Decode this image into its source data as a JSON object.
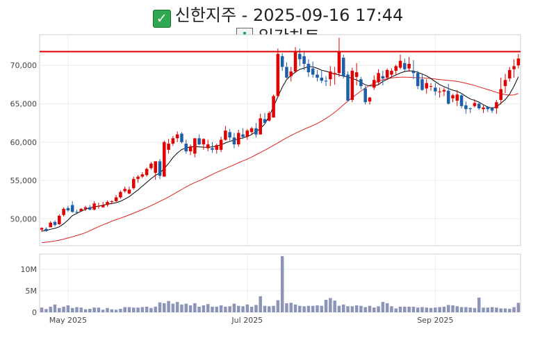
{
  "header": {
    "status_icon": "check-mark-icon",
    "title": "신한지주 - 2025-09-16 17:44",
    "subtitle_icon": "bar-chart-icon",
    "subtitle": "일간차트"
  },
  "colors": {
    "up": "#e00000",
    "down": "#1f5fa8",
    "ma_short": "#000000",
    "ma_long": "#e02020",
    "resistance": "#dd0000",
    "volume": "#8c94b8"
  },
  "chart_data": [
    {
      "type": "candlestick",
      "x_tick_labels": [
        "May 2025",
        "Jul 2025",
        "Sep 2025"
      ],
      "y_tick_labels": [
        "50,000",
        "55,000",
        "60,000",
        "65,000",
        "70,000"
      ],
      "ylim": [
        46500,
        74000
      ],
      "horizontal_line": 71800,
      "grid": true,
      "series_ohlc": [
        [
          48600,
          48900,
          48300,
          48800
        ],
        [
          48700,
          48900,
          48300,
          48400
        ],
        [
          48900,
          49700,
          48900,
          49500
        ],
        [
          49600,
          49800,
          49000,
          49200
        ],
        [
          49300,
          50600,
          49200,
          50400
        ],
        [
          50500,
          51500,
          50300,
          51300
        ],
        [
          51400,
          51700,
          50900,
          51100
        ],
        [
          51800,
          52300,
          50800,
          50900
        ],
        [
          50900,
          51200,
          50600,
          50800
        ],
        [
          51000,
          51400,
          50900,
          51300
        ],
        [
          51300,
          51700,
          51000,
          51500
        ],
        [
          51500,
          51800,
          51100,
          51200
        ],
        [
          51200,
          52300,
          51100,
          52000
        ],
        [
          51600,
          52100,
          51300,
          51700
        ],
        [
          51500,
          52200,
          51500,
          51800
        ],
        [
          51800,
          52400,
          51600,
          52200
        ],
        [
          52200,
          52400,
          51900,
          52300
        ],
        [
          52300,
          53100,
          52200,
          52800
        ],
        [
          52800,
          53700,
          52600,
          53500
        ],
        [
          53600,
          54200,
          53400,
          53900
        ],
        [
          53300,
          54200,
          53200,
          53800
        ],
        [
          54000,
          55500,
          53800,
          55200
        ],
        [
          55200,
          55700,
          54700,
          55500
        ],
        [
          55500,
          56100,
          55300,
          55800
        ],
        [
          55700,
          56700,
          55500,
          56500
        ],
        [
          56600,
          57400,
          56400,
          57200
        ],
        [
          56000,
          57300,
          55100,
          57500
        ],
        [
          57500,
          57800,
          55200,
          55600
        ],
        [
          55500,
          60200,
          55500,
          60000
        ],
        [
          59000,
          60400,
          58500,
          59800
        ],
        [
          59800,
          60800,
          59500,
          60500
        ],
        [
          60500,
          61400,
          60000,
          61000
        ],
        [
          61100,
          61300,
          59800,
          60000
        ],
        [
          59800,
          60300,
          58500,
          58800
        ],
        [
          58800,
          59700,
          58300,
          59400
        ],
        [
          58500,
          60000,
          58000,
          60500
        ],
        [
          60500,
          61000,
          59600,
          59700
        ],
        [
          59700,
          60500,
          59000,
          60400
        ],
        [
          59200,
          60300,
          58800,
          59700
        ],
        [
          59200,
          60000,
          58600,
          59000
        ],
        [
          59000,
          59800,
          58500,
          59600
        ],
        [
          59000,
          60700,
          58700,
          60300
        ],
        [
          60300,
          62100,
          60200,
          61500
        ],
        [
          61300,
          61700,
          60200,
          60600
        ],
        [
          60600,
          61200,
          59200,
          59700
        ],
        [
          59700,
          61600,
          59400,
          61200
        ],
        [
          61000,
          61800,
          60400,
          60700
        ],
        [
          60700,
          61700,
          60300,
          61500
        ],
        [
          61300,
          62000,
          61000,
          61800
        ],
        [
          61800,
          62500,
          60600,
          61000
        ],
        [
          61000,
          63700,
          61000,
          63100
        ],
        [
          63000,
          63800,
          62300,
          62500
        ],
        [
          62800,
          64000,
          62700,
          63800
        ],
        [
          63200,
          66200,
          63200,
          66000
        ],
        [
          66000,
          72200,
          65800,
          71500
        ],
        [
          71200,
          71600,
          69300,
          69800
        ],
        [
          69800,
          70400,
          68300,
          68400
        ],
        [
          68600,
          69800,
          67900,
          69200
        ],
        [
          69200,
          72400,
          69000,
          71700
        ],
        [
          71500,
          72200,
          69900,
          70800
        ],
        [
          71200,
          71900,
          69400,
          70200
        ],
        [
          70200,
          70800,
          68500,
          69100
        ],
        [
          69600,
          70500,
          68400,
          68800
        ],
        [
          68800,
          69400,
          67900,
          68400
        ],
        [
          68400,
          69400,
          67700,
          68000
        ],
        [
          68000,
          68600,
          67300,
          67900
        ],
        [
          68200,
          69900,
          67300,
          69200
        ],
        [
          68800,
          69800,
          67500,
          69000
        ],
        [
          69000,
          73600,
          68500,
          71800
        ],
        [
          71000,
          71400,
          68300,
          68600
        ],
        [
          68800,
          69200,
          65300,
          65400
        ],
        [
          65500,
          69700,
          65200,
          69300
        ],
        [
          68500,
          70300,
          67400,
          69100
        ],
        [
          68200,
          68500,
          66900,
          67300
        ],
        [
          67000,
          67300,
          64900,
          65200
        ],
        [
          65300,
          65900,
          64900,
          65800
        ],
        [
          67100,
          68700,
          66800,
          68100
        ],
        [
          67800,
          69500,
          67500,
          69000
        ],
        [
          68600,
          69300,
          67400,
          68300
        ],
        [
          68400,
          69600,
          68100,
          69400
        ],
        [
          68800,
          69600,
          68400,
          69300
        ],
        [
          69300,
          70100,
          68700,
          69900
        ],
        [
          69700,
          71400,
          69500,
          70600
        ],
        [
          70300,
          70900,
          69200,
          69500
        ],
        [
          69600,
          71100,
          69200,
          70200
        ],
        [
          69200,
          70700,
          68200,
          69000
        ],
        [
          69000,
          69300,
          66900,
          67300
        ],
        [
          68200,
          68800,
          66700,
          66800
        ],
        [
          67000,
          68200,
          66300,
          67700
        ],
        [
          67300,
          67700,
          66700,
          67300
        ],
        [
          67100,
          67700,
          66100,
          66600
        ],
        [
          66500,
          67100,
          65800,
          66600
        ],
        [
          66600,
          67100,
          66000,
          66800
        ],
        [
          66700,
          67600,
          64900,
          65000
        ],
        [
          65700,
          66300,
          65200,
          66100
        ],
        [
          65400,
          66800,
          64700,
          66200
        ],
        [
          66100,
          66200,
          64400,
          64700
        ],
        [
          64800,
          65300,
          63700,
          64300
        ],
        [
          64400,
          64500,
          63800,
          64300
        ],
        [
          64700,
          65600,
          64500,
          65100
        ],
        [
          65000,
          65200,
          64200,
          64400
        ],
        [
          64300,
          64800,
          63800,
          64500
        ],
        [
          64600,
          64700,
          63900,
          64300
        ],
        [
          64400,
          64600,
          63800,
          64100
        ],
        [
          64400,
          65500,
          63700,
          65200
        ],
        [
          65500,
          68400,
          64900,
          66900
        ],
        [
          67300,
          68900,
          66400,
          68100
        ],
        [
          68300,
          69800,
          67900,
          69400
        ],
        [
          69500,
          70800,
          68400,
          69900
        ],
        [
          70000,
          71500,
          69600,
          70900
        ]
      ],
      "moving_average_short": [
        48400,
        48480,
        48640,
        48760,
        48960,
        49340,
        49850,
        50420,
        50700,
        51000,
        51250,
        51440,
        51560,
        51660,
        51780,
        51900,
        52000,
        52100,
        52300,
        52580,
        52900,
        53340,
        53760,
        54250,
        54740,
        55240,
        55680,
        55970,
        56560,
        57220,
        58000,
        58580,
        59040,
        59220,
        59400,
        59420,
        59380,
        59340,
        59320,
        59380,
        59500,
        59630,
        59900,
        60100,
        60260,
        60400,
        60560,
        60720,
        60990,
        61360,
        61780,
        62360,
        63390,
        64650,
        65930,
        67160,
        68150,
        68680,
        69130,
        69490,
        69650,
        69850,
        69800,
        69620,
        69370,
        69240,
        69050,
        68900,
        68760,
        68600,
        68500,
        68300,
        68100,
        67800,
        67460,
        67320,
        67330,
        67490,
        67910,
        68180,
        68500,
        68740,
        69010,
        69200,
        69300,
        69260,
        69090,
        68870,
        68640,
        68280,
        67880,
        67500,
        67230,
        66980,
        66760,
        66620,
        66340,
        65960,
        65620,
        65430,
        65220,
        64860,
        64570,
        64420,
        64580,
        65060,
        65550,
        66270,
        67300,
        68520
      ],
      "moving_average_long": [
        46900,
        46950,
        47020,
        47110,
        47220,
        47350,
        47500,
        47660,
        47820,
        47990,
        48200,
        48450,
        48720,
        48980,
        49220,
        49450,
        49680,
        49890,
        50090,
        50300,
        50520,
        50740,
        50970,
        51200,
        51460,
        51720,
        51990,
        52270,
        52550,
        52850,
        53180,
        53500,
        53830,
        54160,
        54450,
        54720,
        54970,
        55220,
        55500,
        55790,
        56060,
        56320,
        56560,
        56800,
        57050,
        57310,
        57550,
        57780,
        58050,
        58350,
        58650,
        58950,
        59250,
        59580,
        59900,
        60240,
        60560,
        60860,
        61150,
        61420,
        61680,
        61920,
        62160,
        62430,
        62740,
        63090,
        63460,
        63880,
        64360,
        64860,
        65330,
        65800,
        66230,
        66660,
        67050,
        67400,
        67700,
        67950,
        68130,
        68260,
        68370,
        68430,
        68460,
        68470,
        68450,
        68420,
        68400,
        68380,
        68350,
        68290,
        68220,
        68160,
        68100,
        68040,
        67980,
        67900,
        67800,
        67670,
        67530,
        67380,
        67200,
        67020,
        66850,
        66670,
        66470,
        66300,
        66190,
        66120,
        66160,
        66350
      ]
    },
    {
      "type": "bar",
      "name": "volume",
      "y_tick_labels": [
        "0",
        "5M",
        "10M"
      ],
      "ylim": [
        0,
        13500000
      ],
      "values": [
        1100000,
        750000,
        1300000,
        1800000,
        1000000,
        1300000,
        1600000,
        1000000,
        1200000,
        1100000,
        700000,
        800000,
        1100000,
        1100000,
        600000,
        1000000,
        700000,
        600000,
        800000,
        1200000,
        1200000,
        1100000,
        1100000,
        1200000,
        1300000,
        1000000,
        1300000,
        2300000,
        2100000,
        2600000,
        2000000,
        2400000,
        1800000,
        2000000,
        1600000,
        2100000,
        1300000,
        1600000,
        1900000,
        1300000,
        1300000,
        1600000,
        1300000,
        1400000,
        2000000,
        1500000,
        1400000,
        1800000,
        1300000,
        1700000,
        3700000,
        1500000,
        1400000,
        1500000,
        2800000,
        13000000,
        2100000,
        2200000,
        1800000,
        1500000,
        1400000,
        1500000,
        1500000,
        1600000,
        1500000,
        2900000,
        3300000,
        2700000,
        1500000,
        1800000,
        1400000,
        1400000,
        1600000,
        1500000,
        1200000,
        1500000,
        1100000,
        1400000,
        2400000,
        2100000,
        1400000,
        900000,
        1300000,
        1300000,
        1300000,
        1300000,
        1100000,
        1200000,
        1100000,
        1000000,
        1100000,
        1200000,
        1300000,
        1700000,
        1600000,
        1400000,
        1200000,
        1200000,
        1100000,
        1000000,
        3400000,
        1100000,
        1100000,
        1200000,
        1100000,
        900000,
        900000,
        800000,
        1200000,
        2200000
      ]
    }
  ]
}
